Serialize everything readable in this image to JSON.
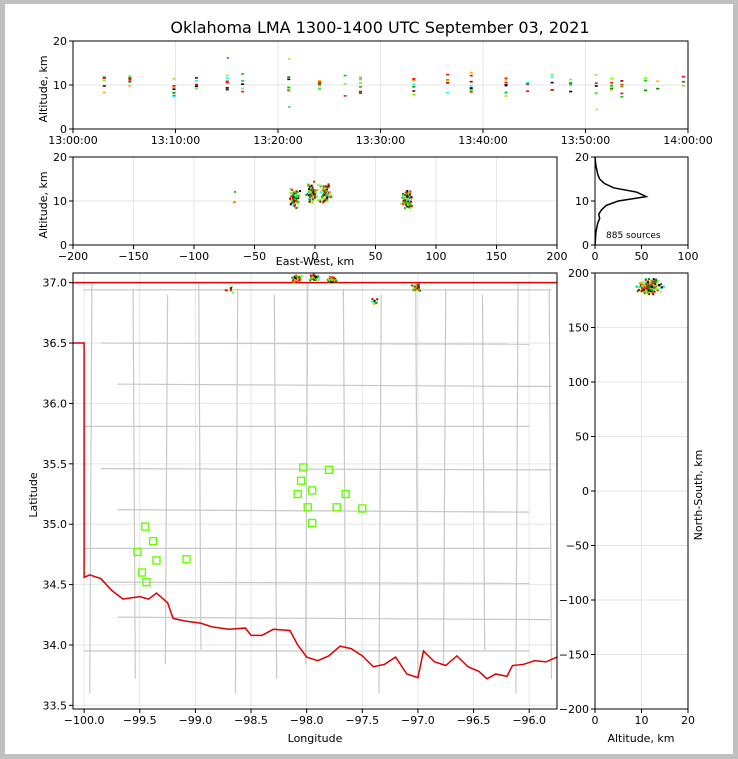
{
  "title": "Oklahoma LMA 1300-1400 UTC September 03, 2021",
  "colors": {
    "background": "#c0c0c0",
    "state_border": "#e00000",
    "county_lines": "#c8c8c8",
    "station_marker": "#66ff00",
    "grid": "#e6e6e6"
  },
  "chart_data": [
    {
      "id": "time_altitude",
      "type": "scatter",
      "xlabel": "",
      "ylabel": "Altitude, km",
      "xlim": [
        "13:00:00",
        "14:00:00"
      ],
      "ylim": [
        0,
        20
      ],
      "xticks": [
        "13:00:00",
        "13:10:00",
        "13:20:00",
        "13:30:00",
        "13:40:00",
        "13:50:00",
        "14:00:00"
      ],
      "yticks": [
        0,
        10,
        20
      ],
      "grid": true,
      "source_columns_minutes": [
        3,
        5.5,
        9.8,
        12,
        15,
        16.5,
        21,
        24,
        26.5,
        28,
        33.2,
        36.5,
        38.8,
        42.2,
        44.3,
        46.7,
        48.5,
        51,
        52.5,
        53.5,
        55.8,
        57,
        59.5
      ],
      "altitude_band_km": [
        8,
        16
      ]
    },
    {
      "id": "ew_altitude",
      "type": "scatter",
      "xlabel": "East-West, km",
      "ylabel": "Altitude, km",
      "xlim": [
        -200,
        200
      ],
      "ylim": [
        0,
        20
      ],
      "xticks": [
        -200,
        -150,
        -100,
        -50,
        0,
        50,
        100,
        150,
        200
      ],
      "yticks": [
        0,
        10,
        20
      ],
      "grid": true,
      "clusters_km": [
        [
          -67,
          10
        ],
        [
          -18,
          11
        ],
        [
          -3,
          12
        ],
        [
          8,
          12
        ],
        [
          75,
          10.5
        ]
      ]
    },
    {
      "id": "altitude_histogram",
      "type": "line",
      "xlabel": "",
      "ylabel": "",
      "xlim": [
        0,
        100
      ],
      "ylim": [
        0,
        20
      ],
      "xticks": [
        0,
        50,
        100
      ],
      "yticks": [
        0,
        10,
        20
      ],
      "annotation": "885 sources",
      "profile": [
        [
          0,
          0
        ],
        [
          1,
          3
        ],
        [
          3,
          5
        ],
        [
          5,
          6
        ],
        [
          4,
          7
        ],
        [
          7,
          8
        ],
        [
          12,
          9
        ],
        [
          25,
          10
        ],
        [
          55,
          11
        ],
        [
          45,
          12
        ],
        [
          20,
          13
        ],
        [
          10,
          14
        ],
        [
          5,
          15
        ],
        [
          3,
          16
        ],
        [
          2,
          17
        ],
        [
          1,
          18
        ],
        [
          0,
          20
        ]
      ]
    },
    {
      "id": "plan_view",
      "type": "scatter",
      "xlabel": "Longitude",
      "ylabel": "Latitude",
      "xlim": [
        -100.1,
        -95.75
      ],
      "ylim": [
        33.47,
        37.08
      ],
      "xticks": [
        -100.0,
        -99.5,
        -99.0,
        -98.5,
        -98.0,
        -97.5,
        -97.0,
        -96.5,
        -96.0
      ],
      "yticks": [
        33.5,
        34.0,
        34.5,
        35.0,
        35.5,
        36.0,
        36.5,
        37.0
      ],
      "grid": true,
      "stations": [
        [
          -98.03,
          35.47
        ],
        [
          -97.8,
          35.45
        ],
        [
          -98.05,
          35.36
        ],
        [
          -97.95,
          35.28
        ],
        [
          -98.08,
          35.25
        ],
        [
          -97.65,
          35.25
        ],
        [
          -97.99,
          35.14
        ],
        [
          -97.73,
          35.14
        ],
        [
          -97.5,
          35.13
        ],
        [
          -97.95,
          35.01
        ],
        [
          -99.45,
          34.98
        ],
        [
          -99.38,
          34.86
        ],
        [
          -99.52,
          34.77
        ],
        [
          -99.35,
          34.7
        ],
        [
          -99.08,
          34.71
        ],
        [
          -99.48,
          34.6
        ],
        [
          -99.44,
          34.52
        ]
      ],
      "source_clusters": [
        [
          -98.1,
          37.04
        ],
        [
          -97.95,
          37.05
        ],
        [
          -97.78,
          37.03
        ],
        [
          -97.02,
          36.97
        ],
        [
          -98.7,
          36.95
        ],
        [
          -97.4,
          36.85
        ]
      ]
    },
    {
      "id": "altitude_northsouth",
      "type": "scatter",
      "xlabel": "Altitude, km",
      "ylabel": "North-South, km",
      "xlim": [
        0,
        20
      ],
      "ylim": [
        -200,
        200
      ],
      "xticks": [
        0,
        10,
        20
      ],
      "yticks": [
        -200,
        -150,
        -100,
        -50,
        0,
        50,
        100,
        150,
        200
      ],
      "grid": true,
      "cluster_center": [
        11.5,
        188
      ]
    }
  ]
}
